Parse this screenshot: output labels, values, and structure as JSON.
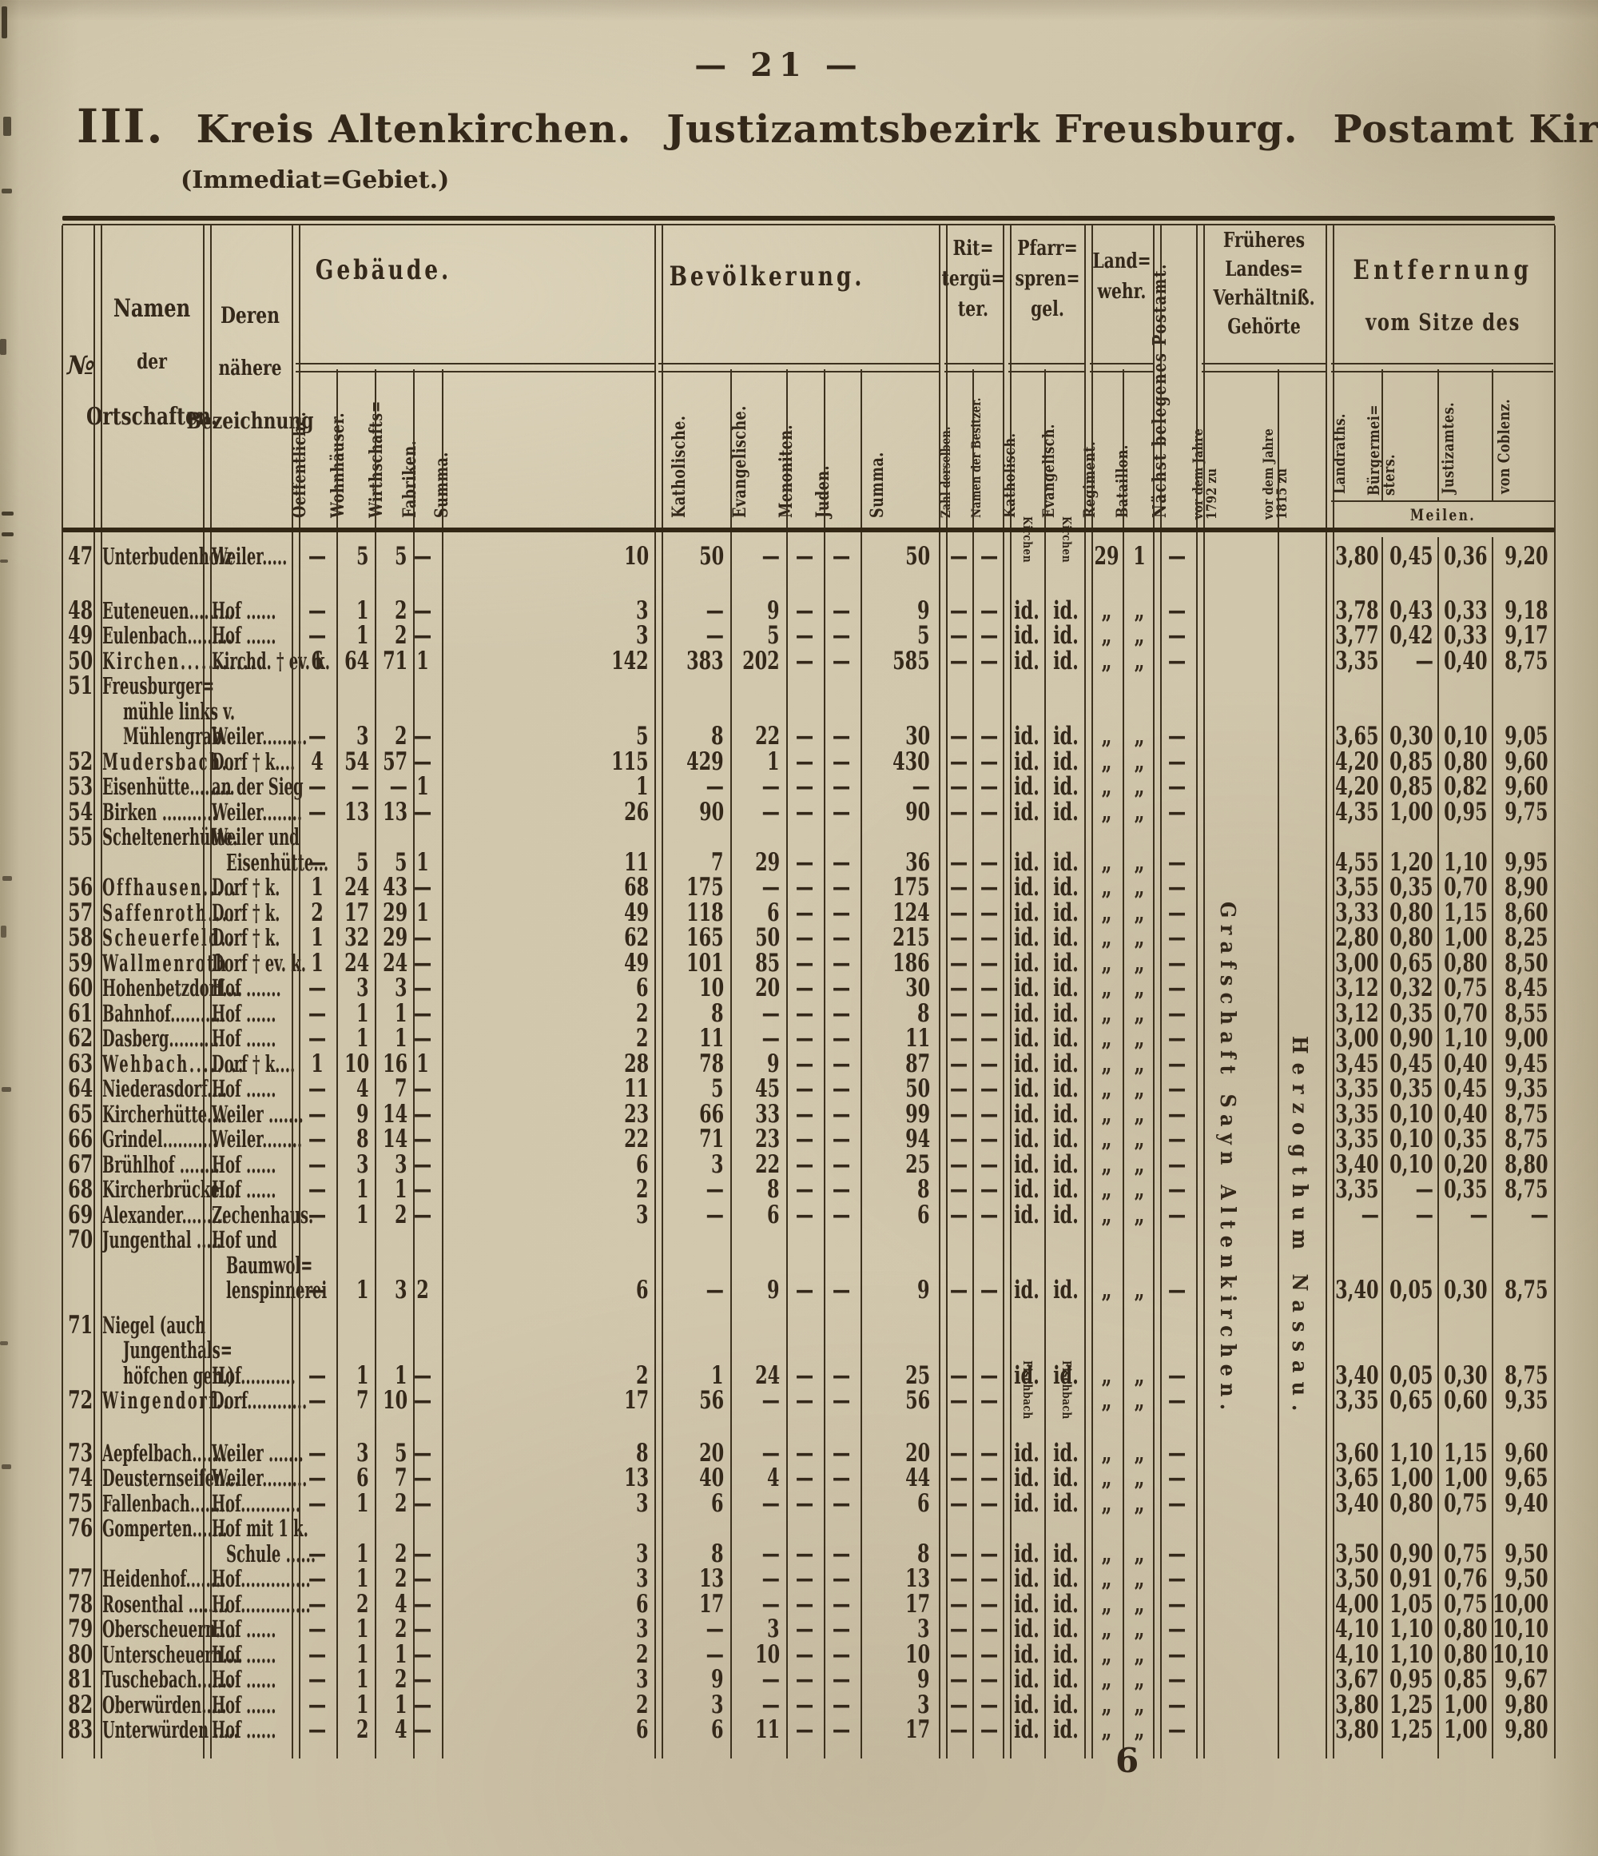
{
  "page": {
    "number_display": "— 21 —",
    "title_roman": "III.",
    "title_kreis": "Kreis Altenkirchen.",
    "title_justiz": "Justizamtsbezirk Freusburg.",
    "title_post": "Postamt Kirchen.",
    "subtitle": "(Immediat=Gebiet.)",
    "signature": "6"
  },
  "header": {
    "nr": "№",
    "name_lines": [
      "Namen",
      "der",
      "Ortschaften."
    ],
    "desig_lines": [
      "Deren",
      "nähere",
      "Bezeichnung"
    ],
    "groups": {
      "gebaeude": {
        "title": "Gebäude.",
        "cols": [
          "Oeffentliche.",
          "Wohnhäuser.",
          "Wirthschafts=",
          "Fabriken.",
          "Summa."
        ]
      },
      "bevoelkerung": {
        "title": "Bevölkerung.",
        "cols": [
          "Katholische.",
          "Evangelische.",
          "Menoniten.",
          "Juden.",
          "Summa."
        ]
      },
      "ritter": {
        "title_lines": [
          "Rit=",
          "tergü=",
          "ter."
        ],
        "cols": [
          "Zahl derselben.",
          "Namen der Besitzer."
        ]
      },
      "pfarr": {
        "title_lines": [
          "Pfarr=",
          "spren=",
          "gel."
        ],
        "cols": [
          "Katholisch.",
          "Evangelisch."
        ]
      },
      "landwehr": {
        "title_lines": [
          "Land=",
          "wehr."
        ],
        "cols": [
          "Regiment.",
          "Bataillon."
        ]
      },
      "postamt": "Nächst belegenes Postamt.",
      "frueheres": {
        "title_lines": [
          "Früheres",
          "Landes=",
          "Verhältniß.",
          "Gehörte"
        ],
        "col_1792": "vor dem Jahre\n1792 zu",
        "col_1815": "vor dem Jahre\n1815 zu"
      },
      "entfernung": {
        "title_lines": [
          "Entfernung",
          "vom Sitze des"
        ],
        "cols": [
          "Landraths.",
          "Bürgermei=\nsters.",
          "Justizamtes.",
          "von Coblenz."
        ],
        "unit": "Meilen."
      }
    }
  },
  "overlays": {
    "col1792": "Grafschaft Sayn Altenkirchen.",
    "col1815": "Herzogthum Nassau."
  },
  "defaults": {
    "dash": "—",
    "ditto": "„",
    "idem": "id.",
    "post": "—",
    "ritter": [
      "—",
      "—"
    ]
  },
  "rows": [
    {
      "nr": "47",
      "name": [
        "Unterbudenholz"
      ],
      "desig": [
        "Weiler....."
      ],
      "g": [
        "—",
        "5",
        "5",
        "—",
        "10"
      ],
      "b": [
        "50",
        "—",
        "—",
        "—",
        "50"
      ],
      "pfv": [
        "Kirchen",
        "Kirchen"
      ],
      "lw": [
        "29",
        "1"
      ],
      "dist": [
        "3,80",
        "0,45",
        "0,36",
        "9,20"
      ],
      "gap": 36
    },
    {
      "nr": "48",
      "name": [
        "Euteneuen........."
      ],
      "desig": [
        "Hof ......"
      ],
      "g": [
        "—",
        "1",
        "2",
        "—",
        "3"
      ],
      "b": [
        "—",
        "9",
        "—",
        "—",
        "9"
      ],
      "dist": [
        "3,78",
        "0,43",
        "0,33",
        "9,18"
      ]
    },
    {
      "nr": "49",
      "name": [
        "Eulenbach........."
      ],
      "desig": [
        "Hof ......"
      ],
      "g": [
        "—",
        "1",
        "2",
        "—",
        "3"
      ],
      "b": [
        "—",
        "5",
        "—",
        "—",
        "5"
      ],
      "dist": [
        "3,77",
        "0,42",
        "0,33",
        "9,17"
      ]
    },
    {
      "nr": "50",
      "name": [
        "Kirchen"
      ],
      "lead": "............",
      "sp": 1,
      "desig": [
        "Kirchd. † ev. k."
      ],
      "g": [
        "6",
        "64",
        "71",
        "1",
        "142"
      ],
      "b": [
        "383",
        "202",
        "—",
        "—",
        "585"
      ],
      "dist": [
        "3,35",
        "—",
        "0,40",
        "8,75"
      ]
    },
    {
      "nr": "51",
      "name": [
        "Freusburger=",
        "mühle links v.",
        "Mühlengrab."
      ],
      "desig": [
        "Weiler........."
      ],
      "g": [
        "—",
        "3",
        "2",
        "—",
        "5"
      ],
      "b": [
        "8",
        "22",
        "—",
        "—",
        "30"
      ],
      "dist": [
        "3,65",
        "0,30",
        "0,10",
        "9,05"
      ]
    },
    {
      "nr": "52",
      "name": [
        "Mudersbach"
      ],
      "lead": "..",
      "sp": 1,
      "desig": [
        "Dorf † k...."
      ],
      "g": [
        "4",
        "54",
        "57",
        "—",
        "115"
      ],
      "b": [
        "429",
        "1",
        "—",
        "—",
        "430"
      ],
      "dist": [
        "4,20",
        "0,85",
        "0,80",
        "9,60"
      ]
    },
    {
      "nr": "53",
      "name": [
        "Eisenhütte........."
      ],
      "desig": [
        "an der Sieg"
      ],
      "g": [
        "—",
        "—",
        "—",
        "1",
        "1"
      ],
      "b": [
        "—",
        "—",
        "—",
        "—",
        "—"
      ],
      "dist": [
        "4,20",
        "0,85",
        "0,82",
        "9,60"
      ]
    },
    {
      "nr": "54",
      "name": [
        "Birken ..........."
      ],
      "desig": [
        "Weiler........"
      ],
      "g": [
        "—",
        "13",
        "13",
        "—",
        "26"
      ],
      "b": [
        "90",
        "—",
        "—",
        "—",
        "90"
      ],
      "dist": [
        "4,35",
        "1,00",
        "0,95",
        "9,75"
      ]
    },
    {
      "nr": "55",
      "name": [
        "Scheltenerhütte."
      ],
      "desig": [
        "Weiler und",
        "Eisenhütte..."
      ],
      "g": [
        "—",
        "5",
        "5",
        "1",
        "11"
      ],
      "b": [
        "7",
        "29",
        "—",
        "—",
        "36"
      ],
      "dist": [
        "4,55",
        "1,20",
        "1,10",
        "9,95"
      ]
    },
    {
      "nr": "56",
      "name": [
        "Offhausen"
      ],
      "lead": ".....",
      "sp": 1,
      "desig": [
        "Dorf † k."
      ],
      "g": [
        "1",
        "24",
        "43",
        "—",
        "68"
      ],
      "b": [
        "175",
        "—",
        "—",
        "—",
        "175"
      ],
      "dist": [
        "3,55",
        "0,35",
        "0,70",
        "8,90"
      ]
    },
    {
      "nr": "57",
      "name": [
        "Saffenroth"
      ],
      "lead": "....",
      "sp": 1,
      "desig": [
        "Dorf † k."
      ],
      "g": [
        "2",
        "17",
        "29",
        "1",
        "49"
      ],
      "b": [
        "118",
        "6",
        "—",
        "—",
        "124"
      ],
      "dist": [
        "3,33",
        "0,80",
        "1,15",
        "8,60"
      ]
    },
    {
      "nr": "58",
      "name": [
        "Scheuerfeld"
      ],
      "lead": "..",
      "sp": 1,
      "desig": [
        "Dorf † k."
      ],
      "g": [
        "1",
        "32",
        "29",
        "—",
        "62"
      ],
      "b": [
        "165",
        "50",
        "—",
        "—",
        "215"
      ],
      "dist": [
        "2,80",
        "0,80",
        "1,00",
        "8,25"
      ]
    },
    {
      "nr": "59",
      "name": [
        "Wallmenroth"
      ],
      "sp": 1,
      "desig": [
        "Dorf † ev. k."
      ],
      "g": [
        "1",
        "24",
        "24",
        "—",
        "49"
      ],
      "b": [
        "101",
        "85",
        "—",
        "—",
        "186"
      ],
      "dist": [
        "3,00",
        "0,65",
        "0,80",
        "8,50"
      ]
    },
    {
      "nr": "60",
      "name": [
        "Hohenbetzdorf...."
      ],
      "desig": [
        "Hof ......."
      ],
      "g": [
        "—",
        "3",
        "3",
        "—",
        "6"
      ],
      "b": [
        "10",
        "20",
        "—",
        "—",
        "30"
      ],
      "dist": [
        "3,12",
        "0,32",
        "0,75",
        "8,45"
      ]
    },
    {
      "nr": "61",
      "name": [
        "Bahnhof..........."
      ],
      "desig": [
        "Hof ......"
      ],
      "g": [
        "—",
        "1",
        "1",
        "—",
        "2"
      ],
      "b": [
        "8",
        "—",
        "—",
        "—",
        "8"
      ],
      "dist": [
        "3,12",
        "0,35",
        "0,70",
        "8,55"
      ]
    },
    {
      "nr": "62",
      "name": [
        "Dasberg.........."
      ],
      "desig": [
        "Hof ......"
      ],
      "g": [
        "—",
        "1",
        "1",
        "—",
        "2"
      ],
      "b": [
        "11",
        "—",
        "—",
        "—",
        "11"
      ],
      "dist": [
        "3,00",
        "0,90",
        "1,10",
        "9,00"
      ]
    },
    {
      "nr": "63",
      "name": [
        "Wehbach"
      ],
      "lead": "........",
      "sp": 1,
      "desig": [
        "Dorf † k...."
      ],
      "g": [
        "1",
        "10",
        "16",
        "1",
        "28"
      ],
      "b": [
        "78",
        "9",
        "—",
        "—",
        "87"
      ],
      "dist": [
        "3,45",
        "0,45",
        "0,40",
        "9,45"
      ]
    },
    {
      "nr": "64",
      "name": [
        "Niederasdorf...."
      ],
      "desig": [
        "Hof ......"
      ],
      "g": [
        "—",
        "4",
        "7",
        "—",
        "11"
      ],
      "b": [
        "5",
        "45",
        "—",
        "—",
        "50"
      ],
      "dist": [
        "3,35",
        "0,35",
        "0,45",
        "9,35"
      ]
    },
    {
      "nr": "65",
      "name": [
        "Kircherhütte....."
      ],
      "desig": [
        "Weiler ......."
      ],
      "g": [
        "—",
        "9",
        "14",
        "—",
        "23"
      ],
      "b": [
        "66",
        "33",
        "—",
        "—",
        "99"
      ],
      "dist": [
        "3,35",
        "0,10",
        "0,40",
        "8,75"
      ]
    },
    {
      "nr": "66",
      "name": [
        "Grindel..........."
      ],
      "desig": [
        "Weiler........"
      ],
      "g": [
        "—",
        "8",
        "14",
        "—",
        "22"
      ],
      "b": [
        "71",
        "23",
        "—",
        "—",
        "94"
      ],
      "dist": [
        "3,35",
        "0,10",
        "0,35",
        "8,75"
      ]
    },
    {
      "nr": "67",
      "name": [
        "Brühlhof ........"
      ],
      "desig": [
        "Hof ......"
      ],
      "g": [
        "—",
        "3",
        "3",
        "—",
        "6"
      ],
      "b": [
        "3",
        "22",
        "—",
        "—",
        "25"
      ],
      "dist": [
        "3,40",
        "0,10",
        "0,20",
        "8,80"
      ]
    },
    {
      "nr": "68",
      "name": [
        "Kircherbrücke...."
      ],
      "desig": [
        "Hof ......"
      ],
      "g": [
        "—",
        "1",
        "1",
        "—",
        "2"
      ],
      "b": [
        "—",
        "8",
        "—",
        "—",
        "8"
      ],
      "dist": [
        "3,35",
        "—",
        "0,35",
        "8,75"
      ]
    },
    {
      "nr": "69",
      "name": [
        "Alexander........."
      ],
      "desig": [
        "Zechenhaus."
      ],
      "g": [
        "—",
        "1",
        "2",
        "—",
        "3"
      ],
      "b": [
        "—",
        "6",
        "—",
        "—",
        "6"
      ],
      "dist": [
        "—",
        "—",
        "—",
        "—"
      ]
    },
    {
      "nr": "70",
      "name": [
        "Jungenthal ....."
      ],
      "desig": [
        "Hof und",
        "Baumwol=",
        "lenspinnerei"
      ],
      "g": [
        "—",
        "1",
        "3",
        "2",
        "6"
      ],
      "b": [
        "—",
        "9",
        "—",
        "—",
        "9"
      ],
      "dist": [
        "3,40",
        "0,05",
        "0,30",
        "8,75"
      ],
      "gap": 12
    },
    {
      "nr": "71",
      "name": [
        "Niegel (auch",
        "Jungenthals=",
        "höfchen gen.)"
      ],
      "desig": [
        "Hof..........."
      ],
      "g": [
        "—",
        "1",
        "1",
        "—",
        "2"
      ],
      "b": [
        "1",
        "24",
        "—",
        "—",
        "25"
      ],
      "dist": [
        "3,40",
        "0,05",
        "0,30",
        "8,75"
      ]
    },
    {
      "nr": "72",
      "name": [
        "Wingendorf"
      ],
      "lead": "..",
      "sp": 1,
      "desig": [
        "Dorf............"
      ],
      "g": [
        "—",
        "7",
        "10",
        "—",
        "17"
      ],
      "b": [
        "56",
        "—",
        "—",
        "—",
        "56"
      ],
      "pfv": [
        "Fischbach",
        "Fischbach"
      ],
      "dist": [
        "3,35",
        "0,65",
        "0,60",
        "9,35"
      ],
      "gap": 34
    },
    {
      "nr": "73",
      "name": [
        "Aepfelbach........"
      ],
      "desig": [
        "Weiler ......."
      ],
      "g": [
        "—",
        "3",
        "5",
        "—",
        "8"
      ],
      "b": [
        "20",
        "—",
        "—",
        "—",
        "20"
      ],
      "dist": [
        "3,60",
        "1,10",
        "1,15",
        "9,60"
      ]
    },
    {
      "nr": "74",
      "name": [
        "Deusternseifen..."
      ],
      "desig": [
        "Weiler........."
      ],
      "g": [
        "—",
        "6",
        "7",
        "—",
        "13"
      ],
      "b": [
        "40",
        "4",
        "—",
        "—",
        "44"
      ],
      "dist": [
        "3,65",
        "1,00",
        "1,00",
        "9,65"
      ]
    },
    {
      "nr": "75",
      "name": [
        "Fallenbach........"
      ],
      "desig": [
        "Hof............"
      ],
      "g": [
        "—",
        "1",
        "2",
        "—",
        "3"
      ],
      "b": [
        "6",
        "—",
        "—",
        "—",
        "6"
      ],
      "dist": [
        "3,40",
        "0,80",
        "0,75",
        "9,40"
      ]
    },
    {
      "nr": "76",
      "name": [
        "Gomperten......."
      ],
      "desig": [
        "Hof mit 1 k.",
        "Schule ......"
      ],
      "g": [
        "—",
        "1",
        "2",
        "—",
        "3"
      ],
      "b": [
        "8",
        "—",
        "—",
        "—",
        "8"
      ],
      "dist": [
        "3,50",
        "0,90",
        "0,75",
        "9,50"
      ]
    },
    {
      "nr": "77",
      "name": [
        "Heidenhof........"
      ],
      "desig": [
        "Hof.............."
      ],
      "g": [
        "—",
        "1",
        "2",
        "—",
        "3"
      ],
      "b": [
        "13",
        "—",
        "—",
        "—",
        "13"
      ],
      "dist": [
        "3,50",
        "0,91",
        "0,76",
        "9,50"
      ]
    },
    {
      "nr": "78",
      "name": [
        "Rosenthal ........"
      ],
      "desig": [
        "Hof.............."
      ],
      "g": [
        "—",
        "2",
        "4",
        "—",
        "6"
      ],
      "b": [
        "17",
        "—",
        "—",
        "—",
        "17"
      ],
      "dist": [
        "4,00",
        "1,05",
        "0,75",
        "10,00"
      ]
    },
    {
      "nr": "79",
      "name": [
        "Oberscheuern...."
      ],
      "desig": [
        "Hof ......"
      ],
      "g": [
        "—",
        "1",
        "2",
        "—",
        "3"
      ],
      "b": [
        "—",
        "3",
        "—",
        "—",
        "3"
      ],
      "dist": [
        "4,10",
        "1,10",
        "0,80",
        "10,10"
      ]
    },
    {
      "nr": "80",
      "name": [
        "Unterscheuern...."
      ],
      "desig": [
        "Hof ......"
      ],
      "g": [
        "—",
        "1",
        "1",
        "—",
        "2"
      ],
      "b": [
        "—",
        "10",
        "—",
        "—",
        "10"
      ],
      "dist": [
        "4,10",
        "1,10",
        "0,80",
        "10,10"
      ]
    },
    {
      "nr": "81",
      "name": [
        "Tuschebach......."
      ],
      "desig": [
        "Hof ......"
      ],
      "g": [
        "—",
        "1",
        "2",
        "—",
        "3"
      ],
      "b": [
        "9",
        "—",
        "—",
        "—",
        "9"
      ],
      "dist": [
        "3,67",
        "0,95",
        "0,85",
        "9,67"
      ]
    },
    {
      "nr": "82",
      "name": [
        "Oberwürden....."
      ],
      "desig": [
        "Hof ......"
      ],
      "g": [
        "—",
        "1",
        "1",
        "—",
        "2"
      ],
      "b": [
        "3",
        "—",
        "—",
        "—",
        "3"
      ],
      "dist": [
        "3,80",
        "1,25",
        "1,00",
        "9,80"
      ]
    },
    {
      "nr": "83",
      "name": [
        "Unterwürden ....."
      ],
      "desig": [
        "Hof ......"
      ],
      "g": [
        "—",
        "2",
        "4",
        "—",
        "6"
      ],
      "b": [
        "6",
        "11",
        "—",
        "—",
        "17"
      ],
      "dist": [
        "3,80",
        "1,25",
        "1,00",
        "9,80"
      ]
    }
  ]
}
